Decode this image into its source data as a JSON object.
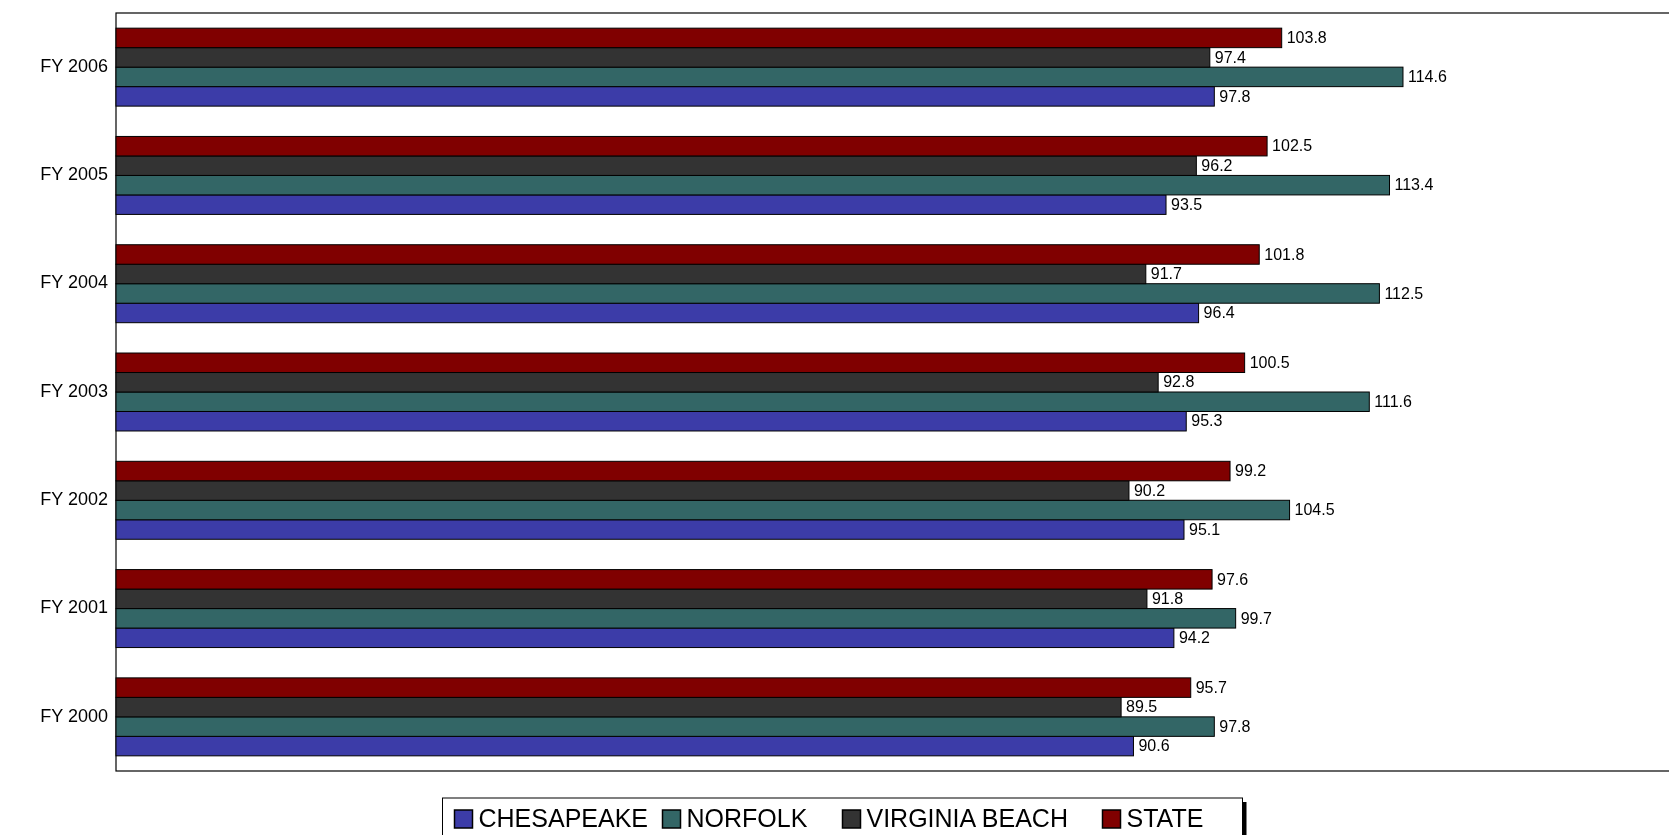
{
  "chart_data": {
    "type": "bar",
    "orientation": "horizontal",
    "categories": [
      "FY 2006",
      "FY 2005",
      "FY 2004",
      "FY 2003",
      "FY 2002",
      "FY 2001",
      "FY 2000"
    ],
    "series": [
      {
        "name": "CHESAPEAKE",
        "color": "#3c3ca8",
        "values": [
          97.8,
          93.5,
          96.4,
          95.3,
          95.1,
          94.2,
          90.6
        ]
      },
      {
        "name": "NORFOLK",
        "color": "#336666",
        "values": [
          114.6,
          113.4,
          112.5,
          111.6,
          104.5,
          99.7,
          97.8
        ]
      },
      {
        "name": "VIRGINIA BEACH",
        "color": "#333333",
        "values": [
          97.4,
          96.2,
          91.7,
          92.8,
          90.2,
          91.8,
          89.5
        ]
      },
      {
        "name": "STATE",
        "color": "#800000",
        "values": [
          103.8,
          102.5,
          101.8,
          100.5,
          99.2,
          97.6,
          95.7
        ]
      }
    ],
    "xlim": [
      0,
      139
    ],
    "tick_labels": "y",
    "data_labels": true,
    "legend": "bottom"
  }
}
